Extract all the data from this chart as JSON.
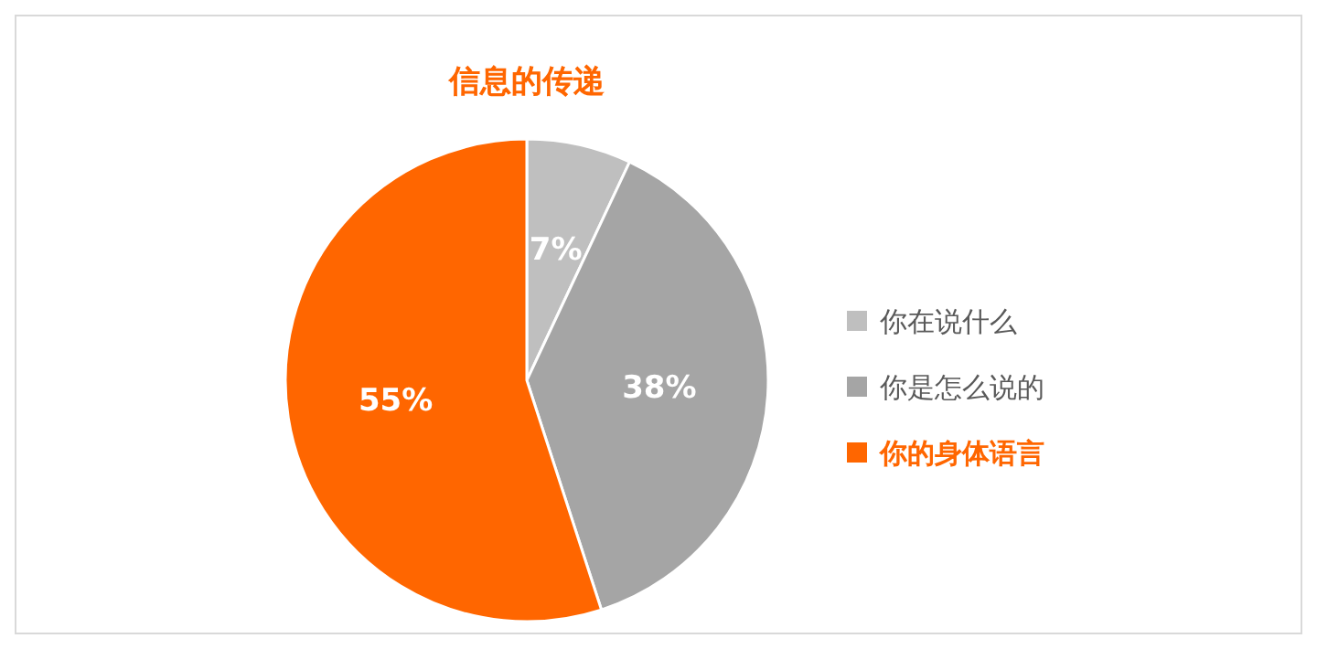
{
  "chart_data": {
    "type": "pie",
    "title": "信息的传递",
    "categories": [
      "你在说什么",
      "你是怎么说的",
      "你的身体语言"
    ],
    "values": [
      7,
      38,
      55
    ],
    "colors": [
      "#bfbfbf",
      "#a5a5a5",
      "#ff6600"
    ],
    "value_labels": [
      "7%",
      "38%",
      "55%"
    ],
    "legend": "right"
  }
}
